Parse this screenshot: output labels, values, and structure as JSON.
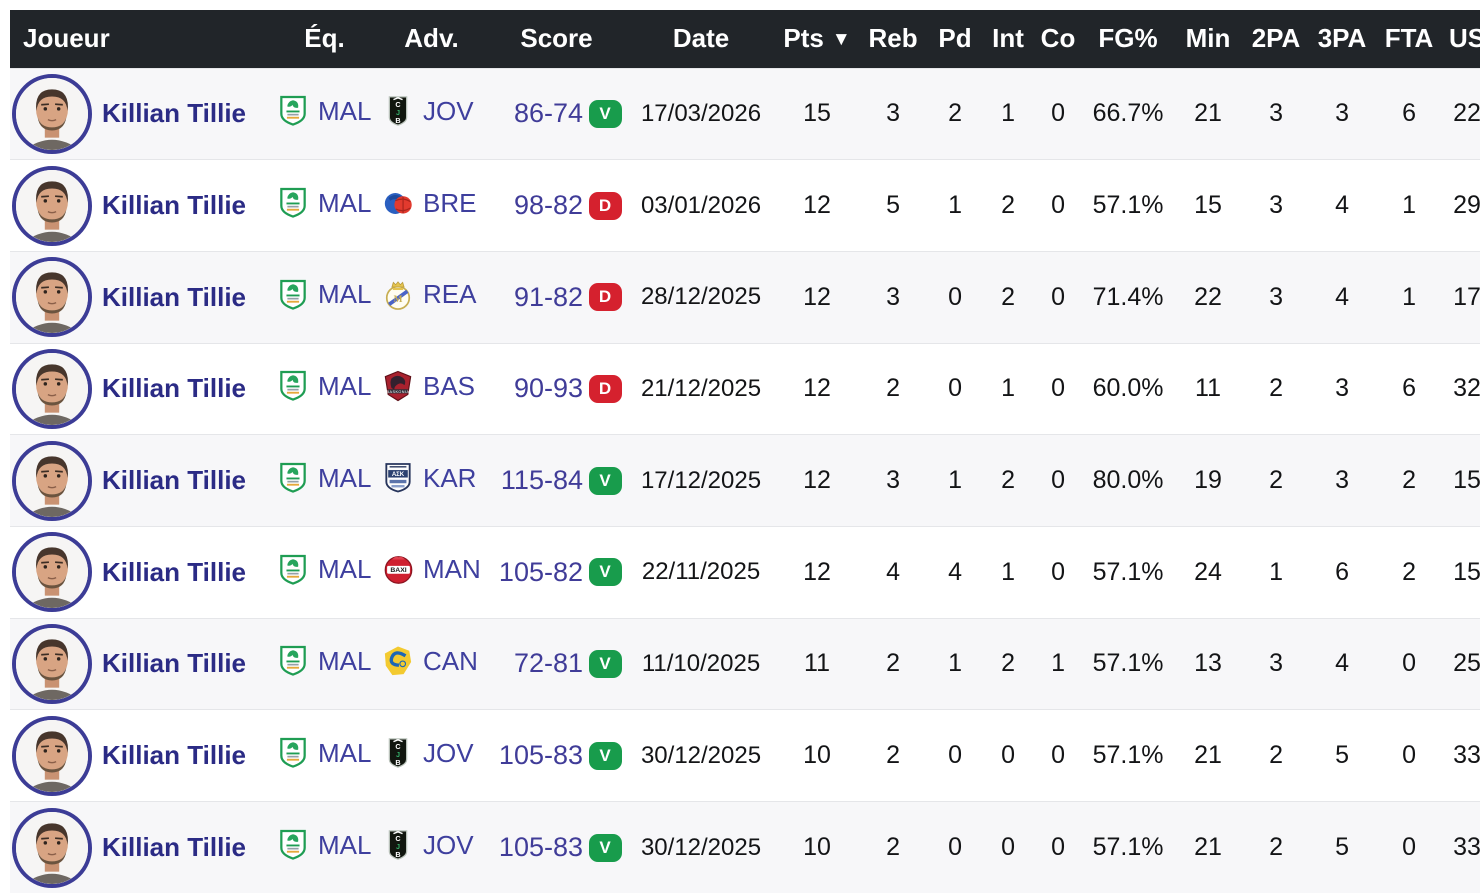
{
  "table": {
    "columns": {
      "joueur": "Joueur",
      "eq": "Éq.",
      "adv": "Adv.",
      "score": "Score",
      "date": "Date",
      "pts": "Pts",
      "reb": "Reb",
      "pd": "Pd",
      "int": "Int",
      "co": "Co",
      "fg": "FG%",
      "min": "Min",
      "p2a": "2PA",
      "p3a": "3PA",
      "fta": "FTA",
      "us": "US"
    },
    "sort": {
      "column": "Pts",
      "direction": "desc",
      "icon_glyph": "▼"
    }
  },
  "colors": {
    "header_bg": "#212529",
    "player_link": "#2b2b85",
    "team_link": "#3e3f9e",
    "score_link": "#403c98",
    "row_alt_bg": "#f7f7f9"
  },
  "result_styles": {
    "V": "#189c4c",
    "D": "#d5212e"
  },
  "rows": [
    {
      "player": "Killian Tillie",
      "avatar": "player-photo",
      "team": "MAL",
      "team_logo": "unicaja-shield-logo",
      "opponent": "JOV",
      "opponent_logo": "joventut-cjb-shield-logo",
      "score": "86-74",
      "result": "V",
      "date": "17/03/2026",
      "pts": "15",
      "reb": "3",
      "pd": "2",
      "int": "1",
      "co": "0",
      "fg": "66.7%",
      "min": "21",
      "p2a": "3",
      "p3a": "3",
      "fta": "6",
      "us": "22"
    },
    {
      "player": "Killian Tillie",
      "avatar": "player-photo",
      "team": "MAL",
      "team_logo": "unicaja-shield-logo",
      "opponent": "BRE",
      "opponent_logo": "breogan-lion-ball-logo",
      "score": "98-82",
      "result": "D",
      "date": "03/01/2026",
      "pts": "12",
      "reb": "5",
      "pd": "1",
      "int": "2",
      "co": "0",
      "fg": "57.1%",
      "min": "15",
      "p2a": "3",
      "p3a": "4",
      "fta": "1",
      "us": "29"
    },
    {
      "player": "Killian Tillie",
      "avatar": "player-photo",
      "team": "MAL",
      "team_logo": "unicaja-shield-logo",
      "opponent": "REA",
      "opponent_logo": "real-madrid-crest-logo",
      "score": "91-82",
      "result": "D",
      "date": "28/12/2025",
      "pts": "12",
      "reb": "3",
      "pd": "0",
      "int": "2",
      "co": "0",
      "fg": "71.4%",
      "min": "22",
      "p2a": "3",
      "p3a": "4",
      "fta": "1",
      "us": "17"
    },
    {
      "player": "Killian Tillie",
      "avatar": "player-photo",
      "team": "MAL",
      "team_logo": "unicaja-shield-logo",
      "opponent": "BAS",
      "opponent_logo": "baskonia-shield-logo",
      "score": "90-93",
      "result": "D",
      "date": "21/12/2025",
      "pts": "12",
      "reb": "2",
      "pd": "0",
      "int": "1",
      "co": "0",
      "fg": "60.0%",
      "min": "11",
      "p2a": "2",
      "p3a": "3",
      "fta": "6",
      "us": "32"
    },
    {
      "player": "Killian Tillie",
      "avatar": "player-photo",
      "team": "MAL",
      "team_logo": "unicaja-shield-logo",
      "opponent": "KAR",
      "opponent_logo": "karditsa-ask-shield-logo",
      "score": "115-84",
      "result": "V",
      "date": "17/12/2025",
      "pts": "12",
      "reb": "3",
      "pd": "1",
      "int": "2",
      "co": "0",
      "fg": "80.0%",
      "min": "19",
      "p2a": "2",
      "p3a": "3",
      "fta": "2",
      "us": "15"
    },
    {
      "player": "Killian Tillie",
      "avatar": "player-photo",
      "team": "MAL",
      "team_logo": "unicaja-shield-logo",
      "opponent": "MAN",
      "opponent_logo": "manresa-baxi-logo",
      "score": "105-82",
      "result": "V",
      "date": "22/11/2025",
      "pts": "12",
      "reb": "4",
      "pd": "4",
      "int": "1",
      "co": "0",
      "fg": "57.1%",
      "min": "24",
      "p2a": "1",
      "p3a": "6",
      "fta": "2",
      "us": "15"
    },
    {
      "player": "Killian Tillie",
      "avatar": "player-photo",
      "team": "MAL",
      "team_logo": "unicaja-shield-logo",
      "opponent": "CAN",
      "opponent_logo": "gran-canaria-logo",
      "score": "72-81",
      "result": "V",
      "date": "11/10/2025",
      "pts": "11",
      "reb": "2",
      "pd": "1",
      "int": "2",
      "co": "1",
      "fg": "57.1%",
      "min": "13",
      "p2a": "3",
      "p3a": "4",
      "fta": "0",
      "us": "25"
    },
    {
      "player": "Killian Tillie",
      "avatar": "player-photo",
      "team": "MAL",
      "team_logo": "unicaja-shield-logo",
      "opponent": "JOV",
      "opponent_logo": "joventut-cjb-shield-logo",
      "score": "105-83",
      "result": "V",
      "date": "30/12/2025",
      "pts": "10",
      "reb": "2",
      "pd": "0",
      "int": "0",
      "co": "0",
      "fg": "57.1%",
      "min": "21",
      "p2a": "2",
      "p3a": "5",
      "fta": "0",
      "us": "33"
    },
    {
      "player": "Killian Tillie",
      "avatar": "player-photo",
      "team": "MAL",
      "team_logo": "unicaja-shield-logo",
      "opponent": "JOV",
      "opponent_logo": "joventut-cjb-shield-logo",
      "score": "105-83",
      "result": "V",
      "date": "30/12/2025",
      "pts": "10",
      "reb": "2",
      "pd": "0",
      "int": "0",
      "co": "0",
      "fg": "57.1%",
      "min": "21",
      "p2a": "2",
      "p3a": "5",
      "fta": "0",
      "us": "33"
    }
  ]
}
